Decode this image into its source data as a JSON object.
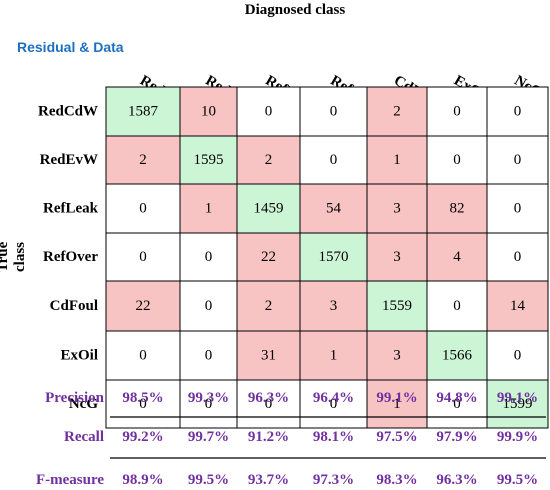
{
  "header": {
    "column_axis_title": "Diagnosed class",
    "row_axis_title": "True class",
    "corner_label": "Residual & Data"
  },
  "colors": {
    "correct": "#ccf5d6",
    "error": "#f7c3c3",
    "zero": "#ffffff",
    "corner_label": "#1f6fc0",
    "metrics": "#7030a0"
  },
  "chart_data": {
    "type": "heatmap",
    "title": "",
    "xlabel": "Diagnosed class",
    "ylabel": "True class",
    "columns": [
      "RedCdW",
      "RedEvW",
      "RefLeak",
      "RefOver",
      "CdFoul",
      "ExOil",
      "NcG"
    ],
    "rows": [
      "RedCdW",
      "RedEvW",
      "RefLeak",
      "RefOver",
      "CdFoul",
      "ExOil",
      "NcG"
    ],
    "values": [
      [
        1587,
        10,
        0,
        0,
        2,
        0,
        0
      ],
      [
        2,
        1595,
        2,
        0,
        1,
        0,
        0
      ],
      [
        0,
        1,
        1459,
        54,
        3,
        82,
        0
      ],
      [
        0,
        0,
        22,
        1570,
        3,
        4,
        0
      ],
      [
        22,
        0,
        2,
        3,
        1559,
        0,
        14
      ],
      [
        0,
        0,
        31,
        1,
        3,
        1566,
        0
      ],
      [
        0,
        0,
        0,
        0,
        1,
        0,
        1599
      ]
    ],
    "metrics": [
      {
        "name": "Precision",
        "values": [
          "98.5%",
          "99.3%",
          "96.3%",
          "96.4%",
          "99.1%",
          "94.8%",
          "99.1%"
        ]
      },
      {
        "name": "Recall",
        "values": [
          "99.2%",
          "99.7%",
          "91.2%",
          "98.1%",
          "97.5%",
          "97.9%",
          "99.9%"
        ]
      },
      {
        "name": "F-measure",
        "values": [
          "98.9%",
          "99.5%",
          "93.7%",
          "97.3%",
          "98.3%",
          "96.3%",
          "99.5%"
        ]
      }
    ]
  }
}
